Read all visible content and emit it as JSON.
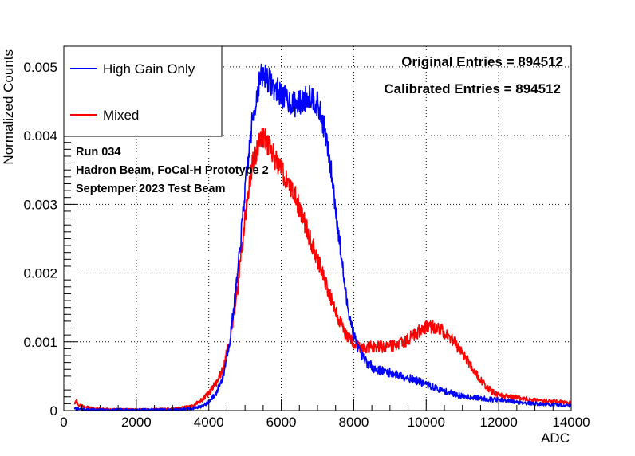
{
  "chart_data": {
    "type": "line",
    "xlabel": "ADC",
    "ylabel": "Normalized Counts",
    "xlim": [
      0,
      14000
    ],
    "ylim": [
      0,
      0.0053
    ],
    "grid": true,
    "x_ticks": [
      "0",
      "2000",
      "4000",
      "6000",
      "8000",
      "10000",
      "12000",
      "14000"
    ],
    "y_ticks": [
      "0",
      "0.001",
      "0.002",
      "0.003",
      "0.004",
      "0.005"
    ],
    "legend_position": "top-left",
    "series": [
      {
        "name": "High Gain Only",
        "color": "#0000ff",
        "points": [
          [
            300,
            3e-05
          ],
          [
            400,
            2e-05
          ],
          [
            1000,
            1e-05
          ],
          [
            2000,
            1e-05
          ],
          [
            3000,
            1e-05
          ],
          [
            3500,
            3e-05
          ],
          [
            3800,
            6e-05
          ],
          [
            4000,
            0.00012
          ],
          [
            4200,
            0.00025
          ],
          [
            4400,
            0.0005
          ],
          [
            4600,
            0.0011
          ],
          [
            4800,
            0.002
          ],
          [
            5000,
            0.0032
          ],
          [
            5200,
            0.0042
          ],
          [
            5400,
            0.0048
          ],
          [
            5500,
            0.0049
          ],
          [
            5600,
            0.00485
          ],
          [
            5800,
            0.0047
          ],
          [
            6000,
            0.0046
          ],
          [
            6200,
            0.0045
          ],
          [
            6400,
            0.00445
          ],
          [
            6600,
            0.0045
          ],
          [
            6800,
            0.0046
          ],
          [
            7000,
            0.00445
          ],
          [
            7200,
            0.0041
          ],
          [
            7400,
            0.0034
          ],
          [
            7600,
            0.0025
          ],
          [
            7800,
            0.0016
          ],
          [
            8000,
            0.0011
          ],
          [
            8200,
            0.0008
          ],
          [
            8400,
            0.00068
          ],
          [
            8600,
            0.0006
          ],
          [
            9000,
            0.00055
          ],
          [
            9500,
            0.00048
          ],
          [
            10000,
            0.00038
          ],
          [
            10500,
            0.00028
          ],
          [
            11000,
            0.00021
          ],
          [
            12000,
            0.00015
          ],
          [
            13000,
            0.0001
          ],
          [
            14000,
            7e-05
          ]
        ]
      },
      {
        "name": "Mixed",
        "color": "#ff0000",
        "points": [
          [
            300,
            0.0001
          ],
          [
            350,
            0.00014
          ],
          [
            400,
            8e-05
          ],
          [
            700,
            4e-05
          ],
          [
            1000,
            2e-05
          ],
          [
            2000,
            1e-05
          ],
          [
            3000,
            2e-05
          ],
          [
            3500,
            6e-05
          ],
          [
            3800,
            0.00015
          ],
          [
            4000,
            0.00025
          ],
          [
            4200,
            0.0004
          ],
          [
            4400,
            0.0006
          ],
          [
            4600,
            0.0011
          ],
          [
            4800,
            0.0018
          ],
          [
            5000,
            0.0028
          ],
          [
            5200,
            0.0036
          ],
          [
            5400,
            0.0039
          ],
          [
            5500,
            0.004
          ],
          [
            5600,
            0.0039
          ],
          [
            5800,
            0.0037
          ],
          [
            6000,
            0.0035
          ],
          [
            6200,
            0.0033
          ],
          [
            6400,
            0.0031
          ],
          [
            6600,
            0.0028
          ],
          [
            6800,
            0.0025
          ],
          [
            7000,
            0.0022
          ],
          [
            7200,
            0.0019
          ],
          [
            7400,
            0.0016
          ],
          [
            7600,
            0.0013
          ],
          [
            7800,
            0.0011
          ],
          [
            8000,
            0.001
          ],
          [
            8200,
            0.00092
          ],
          [
            8400,
            0.00092
          ],
          [
            8600,
            0.00093
          ],
          [
            8800,
            0.00093
          ],
          [
            9000,
            0.00094
          ],
          [
            9200,
            0.00095
          ],
          [
            9400,
            0.001
          ],
          [
            9600,
            0.00108
          ],
          [
            9800,
            0.00115
          ],
          [
            10000,
            0.00122
          ],
          [
            10200,
            0.00122
          ],
          [
            10400,
            0.00118
          ],
          [
            10600,
            0.0011
          ],
          [
            10800,
            0.00098
          ],
          [
            11000,
            0.00083
          ],
          [
            11200,
            0.00068
          ],
          [
            11400,
            0.00052
          ],
          [
            11600,
            0.00038
          ],
          [
            11800,
            0.00028
          ],
          [
            12000,
            0.00022
          ],
          [
            12500,
            0.00018
          ],
          [
            13000,
            0.00015
          ],
          [
            13500,
            0.00013
          ],
          [
            14000,
            0.00011
          ]
        ]
      }
    ],
    "annotations": {
      "original_entries": "Original Entries = 894512",
      "calibrated_entries": "Calibrated Entries = 894512",
      "run": "Run 034",
      "beam": "Hadron Beam, FoCal-H Prototype 2",
      "date": "Septemper 2023 Test Beam"
    }
  }
}
